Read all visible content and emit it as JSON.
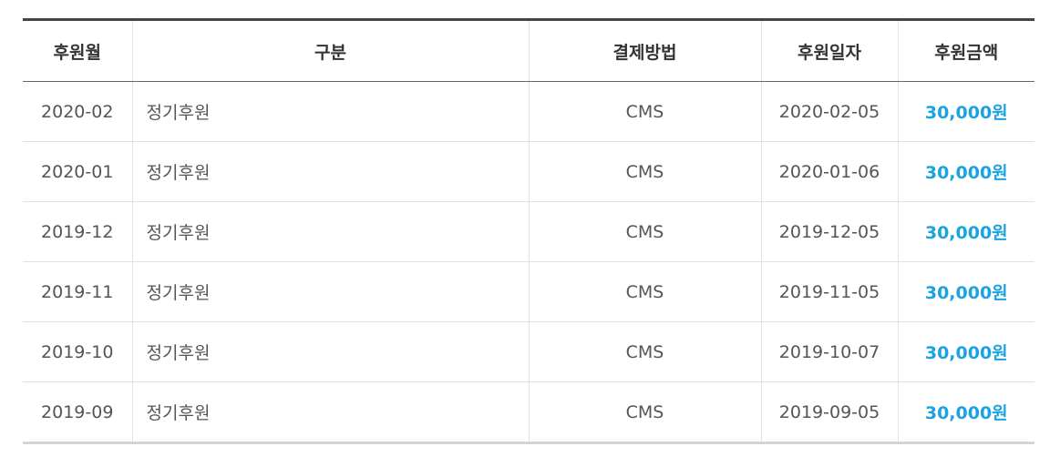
{
  "headers": [
    "후원월",
    "구분",
    "결제방법",
    "후원일자",
    "후원금액"
  ],
  "colors": {
    "amount": "#1aa3e0",
    "border_top": "#444444"
  },
  "rows": [
    {
      "month": "2020-02",
      "type": "정기후원",
      "method": "CMS",
      "date": "2020-02-05",
      "amount": "30,000원"
    },
    {
      "month": "2020-01",
      "type": "정기후원",
      "method": "CMS",
      "date": "2020-01-06",
      "amount": "30,000원"
    },
    {
      "month": "2019-12",
      "type": "정기후원",
      "method": "CMS",
      "date": "2019-12-05",
      "amount": "30,000원"
    },
    {
      "month": "2019-11",
      "type": "정기후원",
      "method": "CMS",
      "date": "2019-11-05",
      "amount": "30,000원"
    },
    {
      "month": "2019-10",
      "type": "정기후원",
      "method": "CMS",
      "date": "2019-10-07",
      "amount": "30,000원"
    },
    {
      "month": "2019-09",
      "type": "정기후원",
      "method": "CMS",
      "date": "2019-09-05",
      "amount": "30,000원"
    }
  ]
}
